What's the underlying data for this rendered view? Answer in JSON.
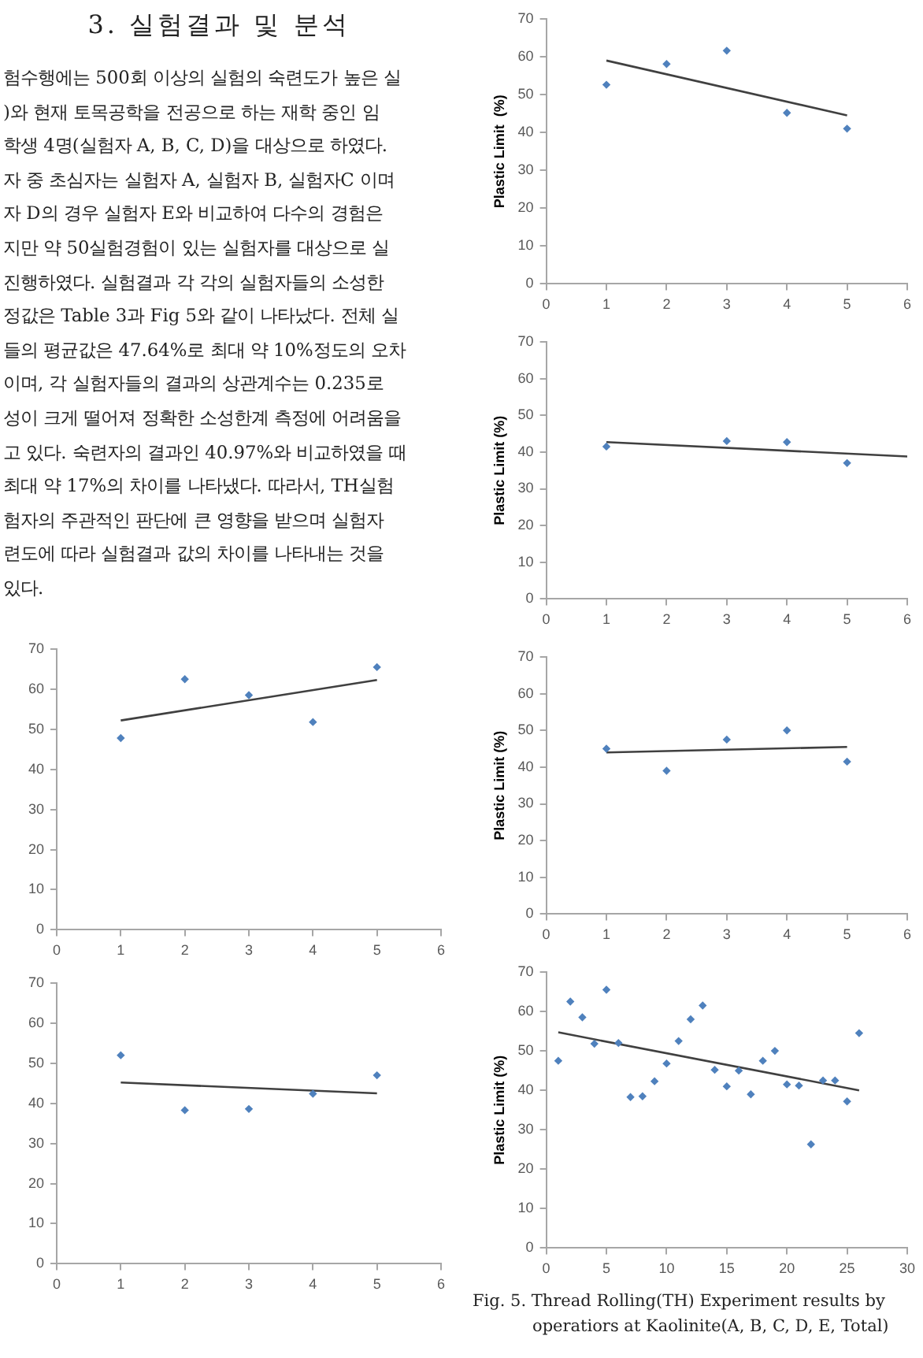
{
  "chart_data": [
    {
      "type": "scatter",
      "ylabel": "Plastic Limit  (%)",
      "xlim": [
        0,
        6
      ],
      "xticks": [
        0,
        1,
        2,
        3,
        4,
        5,
        6
      ],
      "ylim": [
        0,
        70
      ],
      "yticks": [
        0,
        10,
        20,
        30,
        40,
        50,
        60,
        70
      ],
      "marker": "diamond",
      "series": [
        {
          "type": "scatter",
          "color": "#4f81bd",
          "x": [
            1,
            2,
            3,
            4,
            5
          ],
          "values": [
            52.6,
            58.1,
            61.6,
            45.2,
            41
          ]
        },
        {
          "type": "line",
          "marker": "none",
          "color": "#404040",
          "x": [
            1,
            5
          ],
          "values": [
            59,
            44.5
          ]
        }
      ],
      "annotations": [
        "3. 실험결과 및 분석",
        "험수행에는 500회 이상의 실험의 숙련도가 높은 실",
        ")와 현재 토목공학을 전공으로 하는 재학 중인 임",
        "학생 4명(실험자 A, B, C, D)을 대상으로 하였다.",
        "자 중 초심자는 실험자 A, 실험자 B, 실험자C 이며",
        "자 D의 경우 실험자 E와 비교하여 다수의 경험은",
        "지만 약 50실험경험이 있는 실험자를 대상으로 실",
        "진행하였다. 실험결과 각 각의 실험자들의 소성한",
        "정값은 Table 3과 Fig 5와 같이 나타났다. 전체 실",
        "들의 평균값은 47.64%로 최대 약 10%정도의 오차",
        "이며, 각 실험자들의 결과의 상관계수는 0.235로",
        "성이 크게 떨어져 정확한 소성한계 측정에 어려움을",
        "고 있다. 숙련자의 결과인 40.97%와 비교하였을 때",
        "최대 약 17%의 차이를 나타냈다. 따라서, TH실험",
        "험자의 주관적인 판단에 큰 영향을 받으며 실험자",
        "련도에 따라 실험결과 값의 차이를 나타내는 것을",
        "있다."
      ]
    },
    {
      "type": "scatter",
      "ylabel": "Plastic Limit (%)",
      "xlim": [
        0,
        6
      ],
      "xticks": [
        0,
        1,
        2,
        3,
        4,
        5,
        6
      ],
      "ylim": [
        0,
        70
      ],
      "yticks": [
        0,
        10,
        20,
        30,
        40,
        50,
        60,
        70
      ],
      "marker": "diamond",
      "series": [
        {
          "type": "scatter",
          "color": "#4f81bd",
          "x": [
            1,
            3,
            4,
            5
          ],
          "values": [
            41.5,
            43,
            42.7,
            37
          ]
        },
        {
          "type": "line",
          "marker": "none",
          "color": "#404040",
          "x": [
            1,
            6
          ],
          "values": [
            42.7,
            38.8
          ]
        }
      ]
    },
    {
      "type": "scatter",
      "xlim": [
        0,
        6
      ],
      "xticks": [
        0,
        1,
        2,
        3,
        4,
        5,
        6
      ],
      "ylim": [
        0,
        70
      ],
      "yticks": [
        0,
        10,
        20,
        30,
        40,
        50,
        60,
        70
      ],
      "marker": "diamond",
      "series": [
        {
          "type": "scatter",
          "color": "#4f81bd",
          "x": [
            1,
            2,
            3,
            4,
            5
          ],
          "values": [
            47.8,
            62.5,
            58.5,
            51.8,
            65.5
          ]
        },
        {
          "type": "line",
          "marker": "none",
          "color": "#404040",
          "x": [
            1,
            5
          ],
          "values": [
            52.2,
            62.3
          ]
        }
      ]
    },
    {
      "type": "scatter",
      "ylabel": "Plastic Limit (%)",
      "xlim": [
        0,
        6
      ],
      "xticks": [
        0,
        1,
        2,
        3,
        4,
        5,
        6
      ],
      "ylim": [
        0,
        70
      ],
      "yticks": [
        0,
        10,
        20,
        30,
        40,
        50,
        60,
        70
      ],
      "marker": "diamond",
      "series": [
        {
          "type": "scatter",
          "color": "#4f81bd",
          "x": [
            1,
            2,
            3,
            4,
            5
          ],
          "values": [
            45,
            39,
            47.5,
            50,
            41.5
          ]
        },
        {
          "type": "line",
          "marker": "none",
          "color": "#404040",
          "x": [
            1,
            5
          ],
          "values": [
            44,
            45.5
          ]
        }
      ]
    },
    {
      "type": "scatter",
      "xlim": [
        0,
        6
      ],
      "xticks": [
        0,
        1,
        2,
        3,
        4,
        5,
        6
      ],
      "ylim": [
        0,
        70
      ],
      "yticks": [
        0,
        10,
        20,
        30,
        40,
        50,
        60,
        70
      ],
      "marker": "diamond",
      "series": [
        {
          "type": "scatter",
          "color": "#4f81bd",
          "x": [
            1,
            2,
            3,
            4,
            5
          ],
          "values": [
            52,
            38.3,
            38.6,
            42.4,
            47
          ]
        },
        {
          "type": "line",
          "marker": "none",
          "color": "#404040",
          "x": [
            1,
            5
          ],
          "values": [
            45.2,
            42.5
          ]
        }
      ]
    },
    {
      "type": "scatter",
      "ylabel": "Plastic Limit (%)",
      "xlim": [
        0,
        30
      ],
      "xticks": [
        0,
        5,
        10,
        15,
        20,
        25,
        30
      ],
      "ylim": [
        0,
        70
      ],
      "yticks": [
        0,
        10,
        20,
        30,
        40,
        50,
        60,
        70
      ],
      "marker": "diamond",
      "series": [
        {
          "type": "scatter",
          "color": "#4f81bd",
          "x": [
            1,
            2,
            3,
            4,
            5,
            6,
            7,
            8,
            9,
            10,
            11,
            12,
            13,
            14,
            15,
            16,
            17,
            18,
            19,
            20,
            21,
            22,
            23,
            24,
            25,
            26
          ],
          "values": [
            47.5,
            62.5,
            58.5,
            51.8,
            65.5,
            52,
            38.3,
            38.5,
            42.3,
            46.8,
            52.5,
            58,
            61.5,
            45.2,
            41,
            45,
            39,
            47.5,
            50,
            41.5,
            41.2,
            26.3,
            42.5,
            42.5,
            37.2,
            54.5
          ]
        },
        {
          "type": "line",
          "marker": "none",
          "color": "#404040",
          "x": [
            1,
            26
          ],
          "values": [
            54.7,
            40
          ]
        }
      ],
      "annotations": [
        "Fig. 5. Thread Rolling(TH) Experiment results by",
        "operatiors at Kaolinite(A, B, C, D, E, Total)"
      ]
    }
  ]
}
